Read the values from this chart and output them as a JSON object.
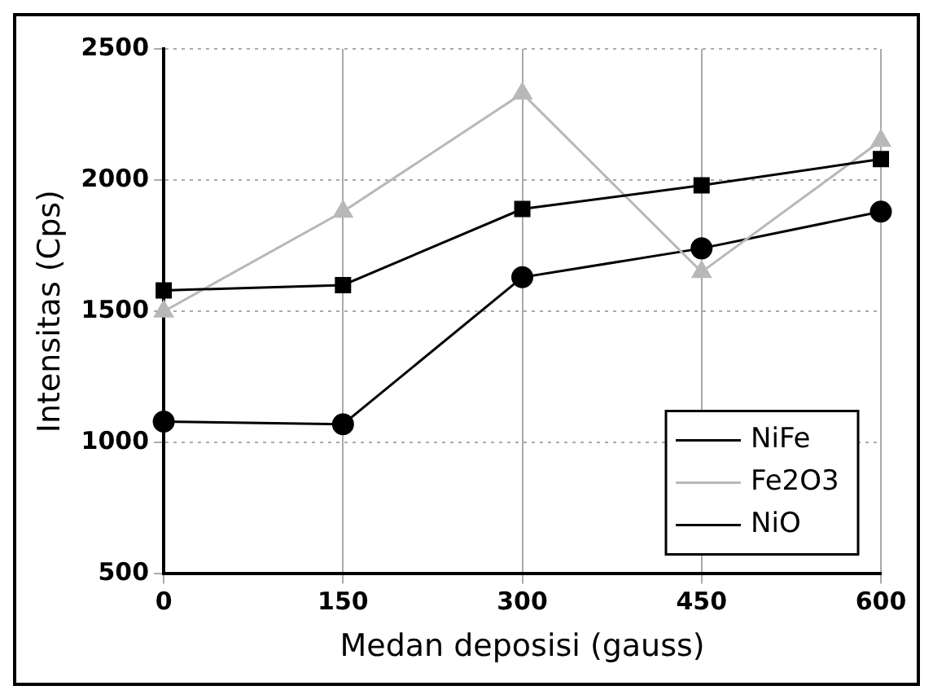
{
  "chart_data": {
    "type": "line",
    "xlabel": "Medan deposisi (gauss)",
    "ylabel": "Intensitas (Cps)",
    "categories": [
      "0",
      "150",
      "300",
      "450",
      "600"
    ],
    "series": [
      {
        "name": "NiFe",
        "color": "#000000",
        "marker": "square",
        "values": [
          1580,
          1600,
          1890,
          1980,
          2080
        ]
      },
      {
        "name": "Fe2O3",
        "color": "#b8b8b8",
        "marker": "triangle",
        "values": [
          1500,
          1880,
          2330,
          1650,
          2150
        ]
      },
      {
        "name": "NiO",
        "color": "#000000",
        "marker": "circle",
        "values": [
          1080,
          1070,
          1630,
          1740,
          1880
        ]
      }
    ],
    "ylim": [
      500,
      2500
    ],
    "yticks": [
      500,
      1000,
      1500,
      2000,
      2500
    ],
    "grid": true,
    "legend": "bottom right"
  }
}
